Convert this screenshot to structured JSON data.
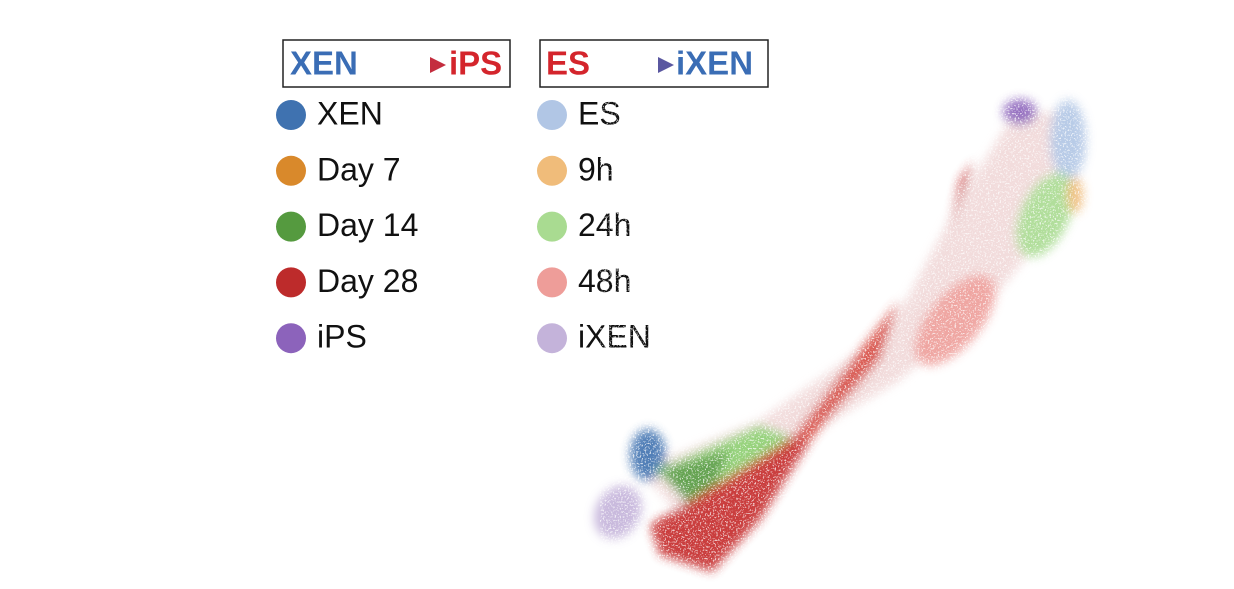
{
  "legends": [
    {
      "title": {
        "from": "XEN",
        "from_color": "#3a6db5",
        "to": "iPS",
        "to_color": "#d4252c"
      },
      "items": [
        {
          "label": "XEN",
          "color": "#3f72b0"
        },
        {
          "label": "Day 7",
          "color": "#d9892b"
        },
        {
          "label": "Day 14",
          "color": "#559a3f"
        },
        {
          "label": "Day 28",
          "color": "#bd2b2b"
        },
        {
          "label": "iPS",
          "color": "#8c63bb"
        }
      ]
    },
    {
      "title": {
        "from": "ES",
        "from_color": "#d4252c",
        "to": "iXEN",
        "to_color": "#3a6db5"
      },
      "items": [
        {
          "label": "ES",
          "color": "#b1c6e5"
        },
        {
          "label": "9h",
          "color": "#f0bc7a"
        },
        {
          "label": "24h",
          "color": "#a9db91"
        },
        {
          "label": "48h",
          "color": "#ee9d99"
        },
        {
          "label": "iXEN",
          "color": "#c4b3da"
        }
      ]
    }
  ]
}
